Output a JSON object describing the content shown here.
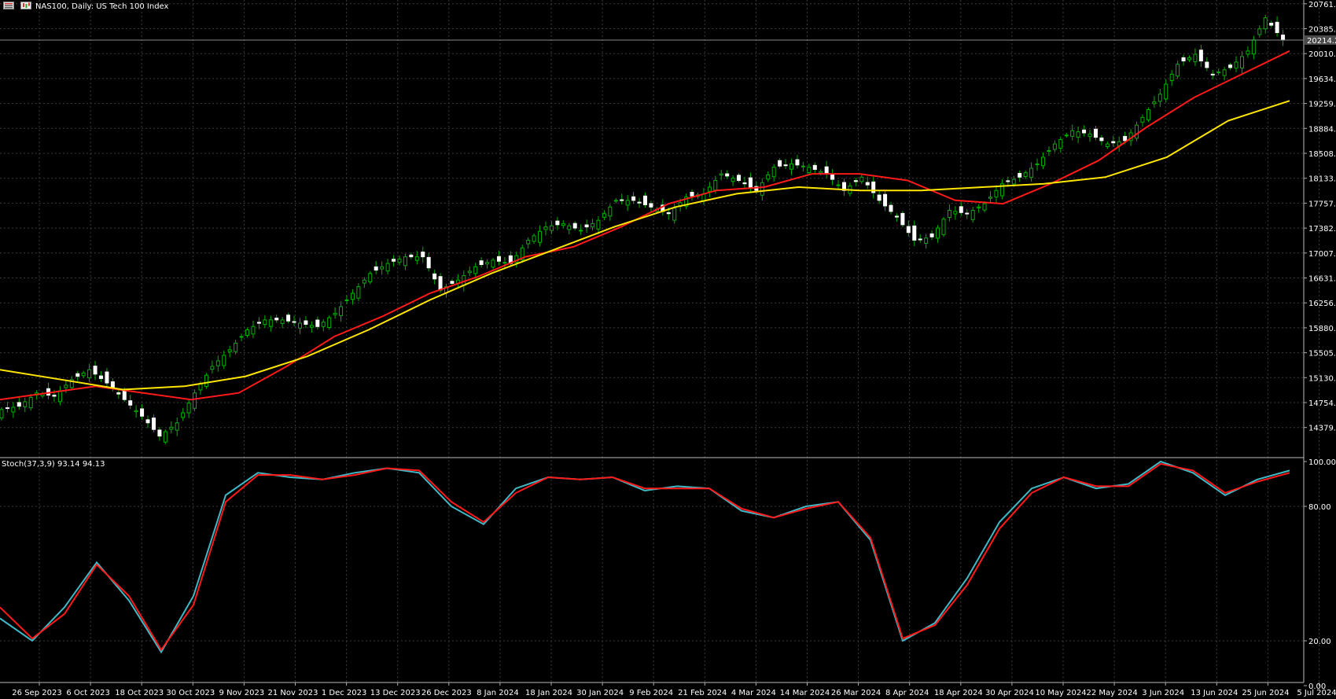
{
  "window": {
    "symbol_title": "NAS100, Daily:  US Tech 100 Index",
    "menu_icon": "window-menu-icon",
    "symbol_icon": "chart-candles-icon"
  },
  "colors": {
    "background": "#000000",
    "grid": "#3a3a3a",
    "axis_text": "#ffffff",
    "bull": "#00b000",
    "bear_body": "#ffffff",
    "wick": "#00b000",
    "ma_fast": "#ff1a1a",
    "ma_slow": "#ffe600",
    "stoch_main": "#3fb9c6",
    "stoch_signal": "#ff1a1a",
    "price_line": "#8a8a8a"
  },
  "chart_data": [
    {
      "type": "candlestick",
      "title": "NAS100, Daily:  US Tech 100 Index",
      "y_ticks": [
        "20761.1",
        "20385.7",
        "20010.3",
        "19634.9",
        "19259.5",
        "18884.1",
        "18508.7",
        "18133.3",
        "17757.9",
        "17382.5",
        "17007.1",
        "16631.7",
        "16256.3",
        "15880.9",
        "15505.5",
        "15130.1",
        "14754.7",
        "14379.3"
      ],
      "ylim": [
        14200,
        20800
      ],
      "current_price": "20214.2",
      "x_ticks": [
        "26 Sep 2023",
        "6 Oct 2023",
        "18 Oct 2023",
        "30 Oct 2023",
        "9 Nov 2023",
        "21 Nov 2023",
        "1 Dec 2023",
        "13 Dec 2023",
        "26 Dec 2023",
        "8 Jan 2024",
        "18 Jan 2024",
        "30 Jan 2024",
        "9 Feb 2024",
        "21 Feb 2024",
        "4 Mar 2024",
        "14 Mar 2024",
        "26 Mar 2024",
        "8 Apr 2024",
        "18 Apr 2024",
        "30 Apr 2024",
        "10 May 2024",
        "22 May 2024",
        "3 Jun 2024",
        "13 Jun 2024",
        "25 Jun 2024",
        "5 Jul 2024"
      ],
      "close_anchors": [
        [
          0,
          14650
        ],
        [
          3,
          14700
        ],
        [
          6,
          14900
        ],
        [
          9,
          14850
        ],
        [
          12,
          15100
        ],
        [
          15,
          15250
        ],
        [
          18,
          15050
        ],
        [
          21,
          14800
        ],
        [
          24,
          14550
        ],
        [
          27,
          14250
        ],
        [
          30,
          14450
        ],
        [
          33,
          14900
        ],
        [
          36,
          15300
        ],
        [
          39,
          15550
        ],
        [
          42,
          15850
        ],
        [
          45,
          16000
        ],
        [
          48,
          16000
        ],
        [
          51,
          15950
        ],
        [
          54,
          15900
        ],
        [
          57,
          16100
        ],
        [
          60,
          16400
        ],
        [
          63,
          16700
        ],
        [
          66,
          16850
        ],
        [
          69,
          16950
        ],
        [
          72,
          16950
        ],
        [
          75,
          16450
        ],
        [
          78,
          16600
        ],
        [
          81,
          16800
        ],
        [
          84,
          16900
        ],
        [
          87,
          16850
        ],
        [
          90,
          17200
        ],
        [
          93,
          17400
        ],
        [
          96,
          17450
        ],
        [
          99,
          17350
        ],
        [
          102,
          17500
        ],
        [
          105,
          17800
        ],
        [
          108,
          17800
        ],
        [
          111,
          17700
        ],
        [
          114,
          17600
        ],
        [
          117,
          17850
        ],
        [
          120,
          17900
        ],
        [
          123,
          18200
        ],
        [
          126,
          18100
        ],
        [
          129,
          17950
        ],
        [
          132,
          18300
        ],
        [
          135,
          18350
        ],
        [
          138,
          18300
        ],
        [
          141,
          18200
        ],
        [
          144,
          17950
        ],
        [
          147,
          18150
        ],
        [
          150,
          17800
        ],
        [
          153,
          17550
        ],
        [
          156,
          17200
        ],
        [
          159,
          17250
        ],
        [
          162,
          17650
        ],
        [
          165,
          17600
        ],
        [
          168,
          17750
        ],
        [
          171,
          18050
        ],
        [
          174,
          18150
        ],
        [
          177,
          18350
        ],
        [
          180,
          18650
        ],
        [
          183,
          18850
        ],
        [
          186,
          18800
        ],
        [
          189,
          18650
        ],
        [
          192,
          18700
        ],
        [
          195,
          19050
        ],
        [
          198,
          19400
        ],
        [
          201,
          19850
        ],
        [
          204,
          20000
        ],
        [
          207,
          19700
        ],
        [
          210,
          19800
        ],
        [
          213,
          20050
        ],
        [
          216,
          20550
        ],
        [
          219,
          20214.2
        ]
      ],
      "series": [
        {
          "name": "",
          "kind": "moving-average-fast",
          "y": [
            14800,
            14900,
            15000,
            14900,
            14800,
            14900,
            15300,
            15750,
            16050,
            16400,
            16650,
            16950,
            17100,
            17400,
            17750,
            17950,
            18000,
            18200,
            18200,
            18100,
            17800,
            17750,
            18050,
            18400,
            18900,
            19350,
            19700,
            20050
          ]
        },
        {
          "name": "",
          "kind": "moving-average-slow",
          "y": [
            15250,
            15100,
            14950,
            15000,
            15150,
            15450,
            15850,
            16300,
            16700,
            17050,
            17400,
            17700,
            17900,
            18000,
            17950,
            17950,
            18000,
            18050,
            18150,
            18450,
            19000,
            19300
          ]
        }
      ]
    },
    {
      "type": "line",
      "title": "Stoch(37,3,9) 93.14 94.13",
      "y_ticks": [
        "100.00",
        "80.00",
        "20.00",
        "0.00"
      ],
      "ylim": [
        0,
        100
      ],
      "series": [
        {
          "name": "",
          "kind": "main",
          "y": [
            30,
            20,
            35,
            55,
            38,
            15,
            40,
            85,
            95,
            93,
            92,
            95,
            97,
            95,
            80,
            72,
            88,
            93,
            92,
            93,
            87,
            89,
            88,
            78,
            75,
            80,
            82,
            65,
            20,
            28,
            48,
            73,
            88,
            93,
            88,
            90,
            100,
            95,
            85,
            92,
            96
          ]
        },
        {
          "name": "",
          "kind": "signal",
          "y": [
            35,
            21,
            32,
            54,
            40,
            16,
            36,
            82,
            94,
            94,
            92,
            94,
            97,
            96,
            82,
            73,
            86,
            93,
            92,
            93,
            88,
            88,
            88,
            79,
            75,
            79,
            82,
            66,
            21,
            27,
            45,
            70,
            86,
            93,
            89,
            89,
            99,
            96,
            86,
            91,
            95
          ]
        }
      ]
    }
  ]
}
